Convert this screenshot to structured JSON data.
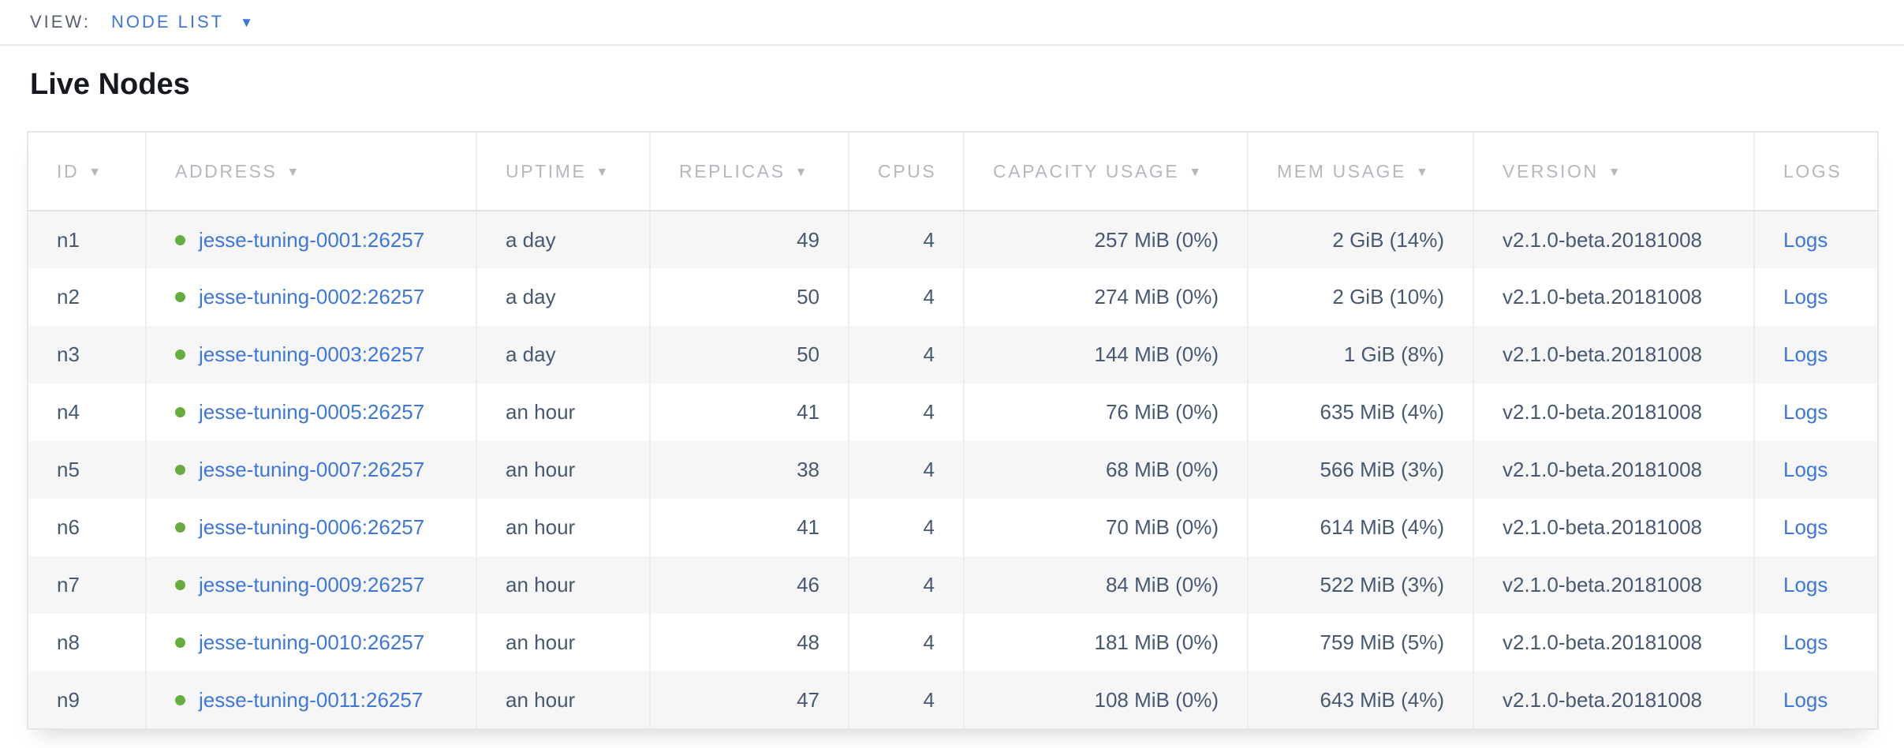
{
  "view_bar": {
    "label": "VIEW:",
    "selected": "NODE LIST"
  },
  "page": {
    "title": "Live Nodes"
  },
  "icons": {
    "sort_desc": "▼",
    "caret_down": "▼"
  },
  "colors": {
    "link_blue": "#3d76dd",
    "live_green": "#65ad3d",
    "cell_text": "#475872",
    "header_text": "#b4b7bd",
    "row_stripe": "#f6f6f7"
  },
  "table": {
    "columns": [
      {
        "key": "id",
        "label": "ID",
        "sortable": true,
        "align": "left"
      },
      {
        "key": "address",
        "label": "ADDRESS",
        "sortable": true,
        "align": "left"
      },
      {
        "key": "uptime",
        "label": "UPTIME",
        "sortable": true,
        "align": "left"
      },
      {
        "key": "replicas",
        "label": "REPLICAS",
        "sortable": true,
        "align": "right"
      },
      {
        "key": "cpus",
        "label": "CPUS",
        "sortable": false,
        "align": "right"
      },
      {
        "key": "capacity",
        "label": "CAPACITY USAGE",
        "sortable": true,
        "align": "right"
      },
      {
        "key": "mem",
        "label": "MEM USAGE",
        "sortable": true,
        "align": "right"
      },
      {
        "key": "version",
        "label": "VERSION",
        "sortable": true,
        "align": "left"
      },
      {
        "key": "logs",
        "label": "LOGS",
        "sortable": false,
        "align": "left"
      }
    ],
    "rows": [
      {
        "id": "n1",
        "status": "live",
        "address": "jesse-tuning-0001:26257",
        "uptime": "a day",
        "replicas": "49",
        "cpus": "4",
        "capacity": "257 MiB (0%)",
        "mem": "2 GiB (14%)",
        "version": "v2.1.0-beta.20181008",
        "logs": "Logs"
      },
      {
        "id": "n2",
        "status": "live",
        "address": "jesse-tuning-0002:26257",
        "uptime": "a day",
        "replicas": "50",
        "cpus": "4",
        "capacity": "274 MiB (0%)",
        "mem": "2 GiB (10%)",
        "version": "v2.1.0-beta.20181008",
        "logs": "Logs"
      },
      {
        "id": "n3",
        "status": "live",
        "address": "jesse-tuning-0003:26257",
        "uptime": "a day",
        "replicas": "50",
        "cpus": "4",
        "capacity": "144 MiB (0%)",
        "mem": "1 GiB (8%)",
        "version": "v2.1.0-beta.20181008",
        "logs": "Logs"
      },
      {
        "id": "n4",
        "status": "live",
        "address": "jesse-tuning-0005:26257",
        "uptime": "an hour",
        "replicas": "41",
        "cpus": "4",
        "capacity": "76 MiB (0%)",
        "mem": "635 MiB (4%)",
        "version": "v2.1.0-beta.20181008",
        "logs": "Logs"
      },
      {
        "id": "n5",
        "status": "live",
        "address": "jesse-tuning-0007:26257",
        "uptime": "an hour",
        "replicas": "38",
        "cpus": "4",
        "capacity": "68 MiB (0%)",
        "mem": "566 MiB (3%)",
        "version": "v2.1.0-beta.20181008",
        "logs": "Logs"
      },
      {
        "id": "n6",
        "status": "live",
        "address": "jesse-tuning-0006:26257",
        "uptime": "an hour",
        "replicas": "41",
        "cpus": "4",
        "capacity": "70 MiB (0%)",
        "mem": "614 MiB (4%)",
        "version": "v2.1.0-beta.20181008",
        "logs": "Logs"
      },
      {
        "id": "n7",
        "status": "live",
        "address": "jesse-tuning-0009:26257",
        "uptime": "an hour",
        "replicas": "46",
        "cpus": "4",
        "capacity": "84 MiB (0%)",
        "mem": "522 MiB (3%)",
        "version": "v2.1.0-beta.20181008",
        "logs": "Logs"
      },
      {
        "id": "n8",
        "status": "live",
        "address": "jesse-tuning-0010:26257",
        "uptime": "an hour",
        "replicas": "48",
        "cpus": "4",
        "capacity": "181 MiB (0%)",
        "mem": "759 MiB (5%)",
        "version": "v2.1.0-beta.20181008",
        "logs": "Logs"
      },
      {
        "id": "n9",
        "status": "live",
        "address": "jesse-tuning-0011:26257",
        "uptime": "an hour",
        "replicas": "47",
        "cpus": "4",
        "capacity": "108 MiB (0%)",
        "mem": "643 MiB (4%)",
        "version": "v2.1.0-beta.20181008",
        "logs": "Logs"
      }
    ]
  }
}
